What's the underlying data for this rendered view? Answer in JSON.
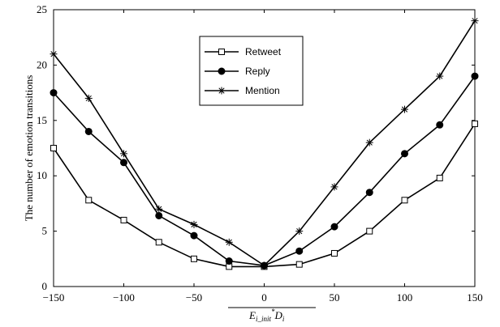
{
  "chart_data": {
    "type": "line",
    "ylabel": "The number of emotion transitions",
    "xlabel": {
      "main": "E",
      "sub1": "i_init",
      "sup": "*",
      "main2": "D",
      "sub2": "i"
    },
    "xlim": [
      -150,
      150
    ],
    "ylim": [
      0,
      25
    ],
    "xticks": [
      "−150",
      "−100",
      "−50",
      "0",
      "50",
      "100",
      "150"
    ],
    "yticks": [
      "0",
      "5",
      "10",
      "15",
      "20",
      "25"
    ],
    "grid": false,
    "legend_position": "top-center",
    "x": [
      -150,
      -125,
      -100,
      -75,
      -50,
      -25,
      0,
      25,
      50,
      75,
      100,
      125,
      150
    ],
    "series": [
      {
        "name": "Retweet",
        "marker": "open-square",
        "values": [
          12.5,
          7.8,
          6.0,
          4.0,
          2.5,
          1.8,
          1.8,
          2.0,
          3.0,
          5.0,
          7.8,
          9.8,
          14.7
        ]
      },
      {
        "name": "Reply",
        "marker": "filled-circle",
        "values": [
          17.5,
          14.0,
          11.2,
          6.4,
          4.6,
          2.3,
          1.9,
          3.2,
          5.4,
          8.5,
          12.0,
          14.6,
          19.0
        ]
      },
      {
        "name": "Mention",
        "marker": "asterisk",
        "values": [
          21.0,
          17.0,
          12.0,
          7.0,
          5.6,
          4.0,
          1.9,
          5.0,
          9.0,
          13.0,
          16.0,
          19.0,
          24.0
        ]
      }
    ]
  }
}
